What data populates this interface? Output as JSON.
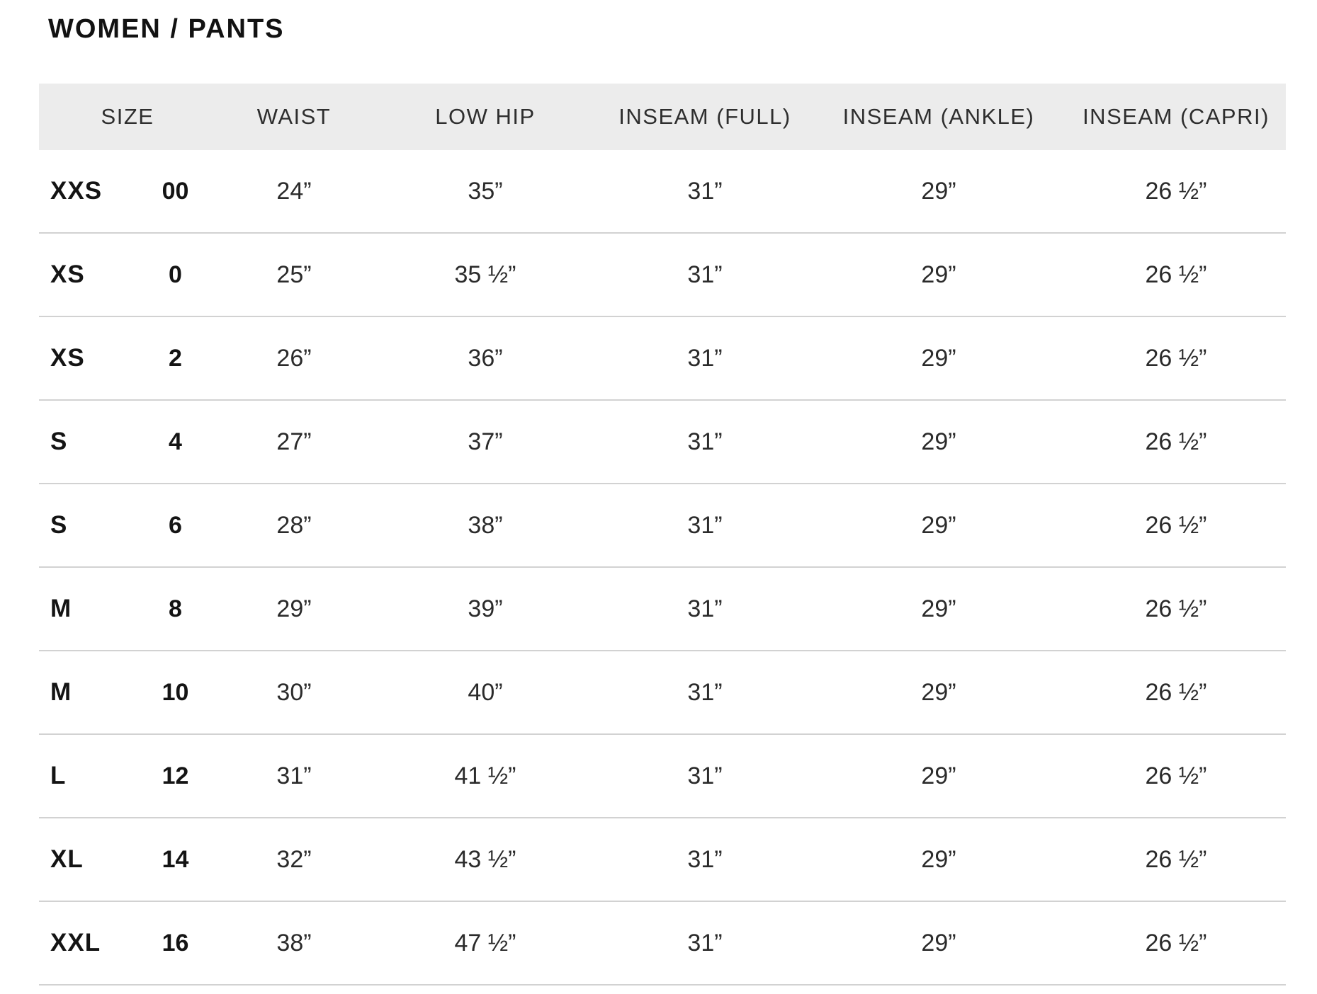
{
  "page": {
    "title": "WOMEN / PANTS"
  },
  "table": {
    "headers": [
      "SIZE",
      "WAIST",
      "LOW HIP",
      "INSEAM (FULL)",
      "INSEAM (ANKLE)",
      "INSEAM (CAPRI)"
    ],
    "rows": [
      {
        "size_letter": "XXS",
        "size_number": "00",
        "waist": "24”",
        "low_hip": "35”",
        "inseam_full": "31”",
        "inseam_ankle": "29”",
        "inseam_capri": "26 ½”"
      },
      {
        "size_letter": "XS",
        "size_number": "0",
        "waist": "25”",
        "low_hip": "35 ½”",
        "inseam_full": "31”",
        "inseam_ankle": "29”",
        "inseam_capri": "26 ½”"
      },
      {
        "size_letter": "XS",
        "size_number": "2",
        "waist": "26”",
        "low_hip": "36”",
        "inseam_full": "31”",
        "inseam_ankle": "29”",
        "inseam_capri": "26 ½”"
      },
      {
        "size_letter": "S",
        "size_number": "4",
        "waist": "27”",
        "low_hip": "37”",
        "inseam_full": "31”",
        "inseam_ankle": "29”",
        "inseam_capri": "26 ½”"
      },
      {
        "size_letter": "S",
        "size_number": "6",
        "waist": "28”",
        "low_hip": "38”",
        "inseam_full": "31”",
        "inseam_ankle": "29”",
        "inseam_capri": "26 ½”"
      },
      {
        "size_letter": "M",
        "size_number": "8",
        "waist": "29”",
        "low_hip": "39”",
        "inseam_full": "31”",
        "inseam_ankle": "29”",
        "inseam_capri": "26 ½”"
      },
      {
        "size_letter": "M",
        "size_number": "10",
        "waist": "30”",
        "low_hip": "40”",
        "inseam_full": "31”",
        "inseam_ankle": "29”",
        "inseam_capri": "26 ½”"
      },
      {
        "size_letter": "L",
        "size_number": "12",
        "waist": "31”",
        "low_hip": "41 ½”",
        "inseam_full": "31”",
        "inseam_ankle": "29”",
        "inseam_capri": "26 ½”"
      },
      {
        "size_letter": "XL",
        "size_number": "14",
        "waist": "32”",
        "low_hip": "43 ½”",
        "inseam_full": "31”",
        "inseam_ankle": "29”",
        "inseam_capri": "26 ½”"
      },
      {
        "size_letter": "XXL",
        "size_number": "16",
        "waist": "38”",
        "low_hip": "47 ½”",
        "inseam_full": "31”",
        "inseam_ankle": "29”",
        "inseam_capri": "26 ½”"
      }
    ]
  },
  "colors": {
    "header_bg": "#ececec",
    "divider": "#d2d2d2",
    "title_text": "#121212",
    "size_text": "#141414",
    "value_text": "#2b2b2b",
    "header_text": "#2e2e2e"
  }
}
